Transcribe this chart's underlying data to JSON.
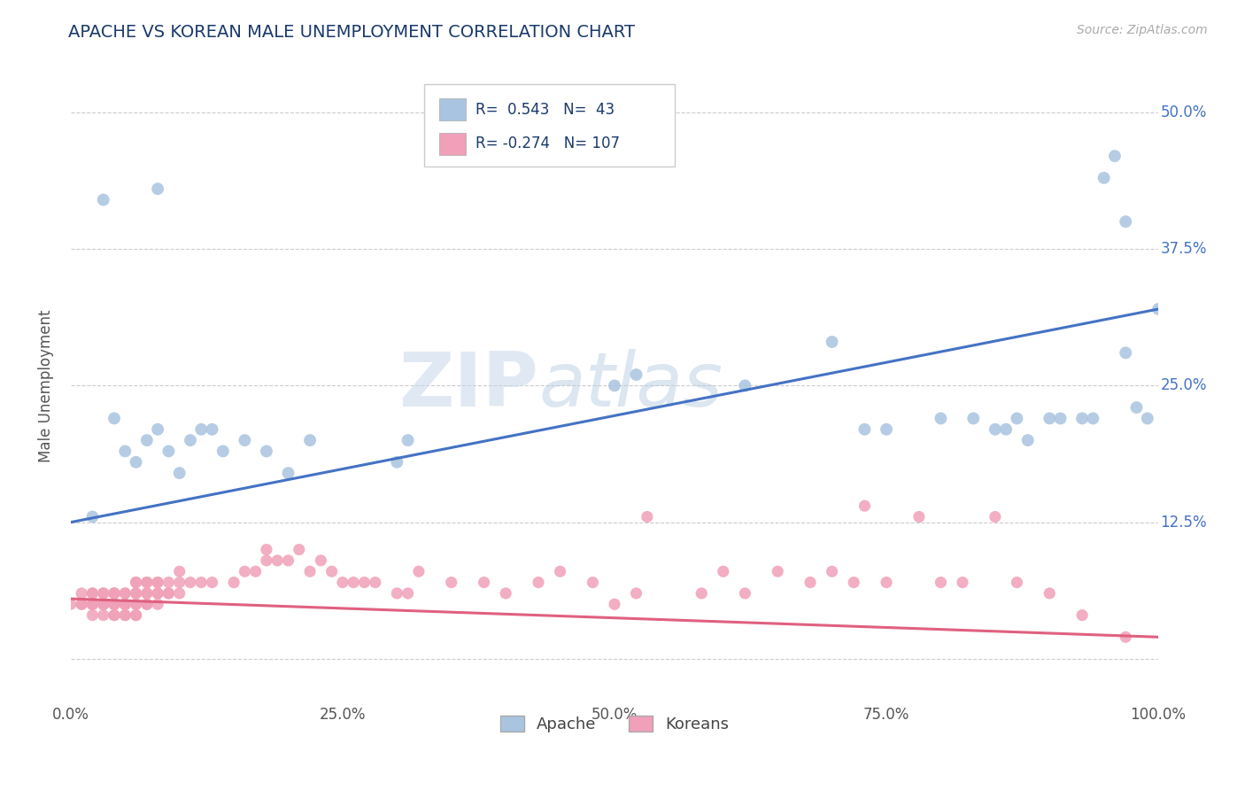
{
  "title": "APACHE VS KOREAN MALE UNEMPLOYMENT CORRELATION CHART",
  "source": "Source: ZipAtlas.com",
  "ylabel": "Male Unemployment",
  "xlim": [
    0,
    1.0
  ],
  "ylim": [
    -0.04,
    0.54
  ],
  "xticks": [
    0.0,
    0.25,
    0.5,
    0.75,
    1.0
  ],
  "xticklabels": [
    "0.0%",
    "25.0%",
    "50.0%",
    "75.0%",
    "100.0%"
  ],
  "yticks": [
    0.0,
    0.125,
    0.25,
    0.375,
    0.5
  ],
  "yticklabels": [
    "",
    "12.5%",
    "25.0%",
    "37.5%",
    "50.0%"
  ],
  "background_color": "#ffffff",
  "grid_color": "#cccccc",
  "watermark_zip": "ZIP",
  "watermark_atlas": "atlas",
  "apache_color": "#a8c4e0",
  "korean_color": "#f0a0b8",
  "apache_line_color": "#4472c4",
  "korean_line_color": "#e06080",
  "legend_apache_r": "0.543",
  "legend_apache_n": "43",
  "legend_korean_r": "-0.274",
  "legend_korean_n": "107",
  "apache_x": [
    0.02,
    0.04,
    0.05,
    0.06,
    0.07,
    0.08,
    0.09,
    0.1,
    0.11,
    0.12,
    0.13,
    0.14,
    0.16,
    0.18,
    0.2,
    0.22,
    0.3,
    0.31,
    0.5,
    0.52,
    0.62,
    0.7,
    0.73,
    0.75,
    0.8,
    0.83,
    0.85,
    0.86,
    0.87,
    0.88,
    0.9,
    0.91,
    0.93,
    0.94,
    0.95,
    0.96,
    0.97,
    0.97,
    0.98,
    0.99,
    1.0,
    0.03,
    0.08
  ],
  "apache_y": [
    0.13,
    0.22,
    0.19,
    0.18,
    0.2,
    0.21,
    0.19,
    0.17,
    0.2,
    0.21,
    0.21,
    0.19,
    0.2,
    0.19,
    0.17,
    0.2,
    0.18,
    0.2,
    0.25,
    0.26,
    0.25,
    0.29,
    0.21,
    0.21,
    0.22,
    0.22,
    0.21,
    0.21,
    0.22,
    0.2,
    0.22,
    0.22,
    0.22,
    0.22,
    0.44,
    0.46,
    0.4,
    0.28,
    0.23,
    0.22,
    0.32,
    0.42,
    0.43
  ],
  "korean_x": [
    0.0,
    0.01,
    0.01,
    0.01,
    0.02,
    0.02,
    0.02,
    0.02,
    0.02,
    0.02,
    0.02,
    0.03,
    0.03,
    0.03,
    0.03,
    0.03,
    0.03,
    0.03,
    0.04,
    0.04,
    0.04,
    0.04,
    0.04,
    0.04,
    0.04,
    0.04,
    0.04,
    0.05,
    0.05,
    0.05,
    0.05,
    0.05,
    0.05,
    0.05,
    0.05,
    0.06,
    0.06,
    0.06,
    0.06,
    0.06,
    0.06,
    0.06,
    0.06,
    0.07,
    0.07,
    0.07,
    0.07,
    0.07,
    0.07,
    0.08,
    0.08,
    0.08,
    0.08,
    0.08,
    0.09,
    0.09,
    0.09,
    0.1,
    0.1,
    0.1,
    0.11,
    0.12,
    0.13,
    0.15,
    0.16,
    0.17,
    0.18,
    0.18,
    0.19,
    0.2,
    0.21,
    0.22,
    0.23,
    0.24,
    0.25,
    0.26,
    0.27,
    0.28,
    0.3,
    0.31,
    0.32,
    0.35,
    0.38,
    0.4,
    0.43,
    0.45,
    0.48,
    0.5,
    0.52,
    0.53,
    0.58,
    0.6,
    0.62,
    0.65,
    0.68,
    0.7,
    0.72,
    0.73,
    0.75,
    0.78,
    0.8,
    0.82,
    0.85,
    0.87,
    0.9,
    0.93,
    0.97
  ],
  "korean_y": [
    0.05,
    0.05,
    0.05,
    0.06,
    0.04,
    0.05,
    0.05,
    0.06,
    0.05,
    0.05,
    0.06,
    0.04,
    0.05,
    0.05,
    0.06,
    0.05,
    0.05,
    0.06,
    0.04,
    0.04,
    0.05,
    0.05,
    0.06,
    0.06,
    0.05,
    0.05,
    0.06,
    0.04,
    0.04,
    0.05,
    0.05,
    0.06,
    0.06,
    0.05,
    0.05,
    0.04,
    0.04,
    0.05,
    0.05,
    0.06,
    0.06,
    0.07,
    0.07,
    0.05,
    0.05,
    0.06,
    0.06,
    0.07,
    0.07,
    0.05,
    0.06,
    0.06,
    0.07,
    0.07,
    0.06,
    0.06,
    0.07,
    0.06,
    0.07,
    0.08,
    0.07,
    0.07,
    0.07,
    0.07,
    0.08,
    0.08,
    0.09,
    0.1,
    0.09,
    0.09,
    0.1,
    0.08,
    0.09,
    0.08,
    0.07,
    0.07,
    0.07,
    0.07,
    0.06,
    0.06,
    0.08,
    0.07,
    0.07,
    0.06,
    0.07,
    0.08,
    0.07,
    0.05,
    0.06,
    0.13,
    0.06,
    0.08,
    0.06,
    0.08,
    0.07,
    0.08,
    0.07,
    0.14,
    0.07,
    0.13,
    0.07,
    0.07,
    0.13,
    0.07,
    0.06,
    0.04,
    0.02
  ],
  "apache_line_x0": 0.0,
  "apache_line_y0": 0.125,
  "apache_line_x1": 1.0,
  "apache_line_y1": 0.32,
  "korean_line_x0": 0.0,
  "korean_line_y0": 0.055,
  "korean_line_x1": 1.0,
  "korean_line_y1": 0.02
}
